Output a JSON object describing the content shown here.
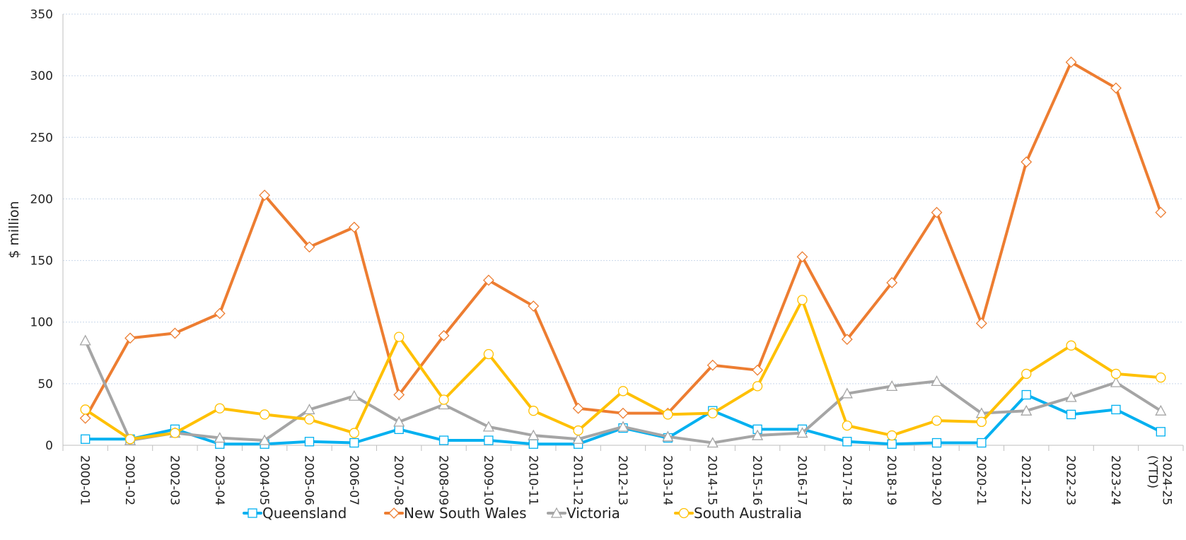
{
  "chart_data": {
    "type": "line",
    "title": "",
    "xlabel": "",
    "ylabel": "$ million",
    "ylim": [
      0,
      350
    ],
    "yticks": [
      0,
      50,
      100,
      150,
      200,
      250,
      300,
      350
    ],
    "grid": true,
    "legend_position": "bottom",
    "categories": [
      "2000-01",
      "2001-02",
      "2002-03",
      "2003-04",
      "2004-05",
      "2005-06",
      "2006-07",
      "2007-08",
      "2008-09",
      "2009-10",
      "2010-11",
      "2011-12",
      "2012-13",
      "2013-14",
      "2014-15",
      "2015-16",
      "2016-17",
      "2017-18",
      "2018-19",
      "2019-20",
      "2020-21",
      "2021-22",
      "2022-23",
      "2023-24",
      "2024-25 (YTD)"
    ],
    "series": [
      {
        "name": "Queensland",
        "color": "#00b0f0",
        "marker": "square",
        "values": [
          5,
          5,
          13,
          1,
          1,
          3,
          2,
          13,
          4,
          4,
          1,
          1,
          14,
          6,
          28,
          13,
          13,
          3,
          1,
          2,
          2,
          41,
          25,
          29,
          11
        ]
      },
      {
        "name": "New South Wales",
        "color": "#ed7d31",
        "marker": "diamond",
        "values": [
          22,
          87,
          91,
          107,
          203,
          161,
          177,
          41,
          89,
          134,
          113,
          30,
          26,
          26,
          65,
          61,
          153,
          86,
          132,
          189,
          99,
          230,
          311,
          290,
          189
        ]
      },
      {
        "name": "Victoria",
        "color": "#a5a5a5",
        "marker": "triangle",
        "values": [
          85,
          4,
          10,
          6,
          4,
          29,
          40,
          19,
          33,
          15,
          8,
          5,
          15,
          7,
          2,
          8,
          10,
          42,
          48,
          52,
          26,
          28,
          39,
          51,
          28
        ]
      },
      {
        "name": "South Australia",
        "color": "#ffc000",
        "marker": "circle",
        "values": [
          29,
          5,
          10,
          30,
          25,
          21,
          10,
          88,
          37,
          74,
          28,
          12,
          44,
          25,
          26,
          48,
          118,
          16,
          8,
          20,
          19,
          58,
          81,
          58,
          55
        ]
      }
    ]
  }
}
